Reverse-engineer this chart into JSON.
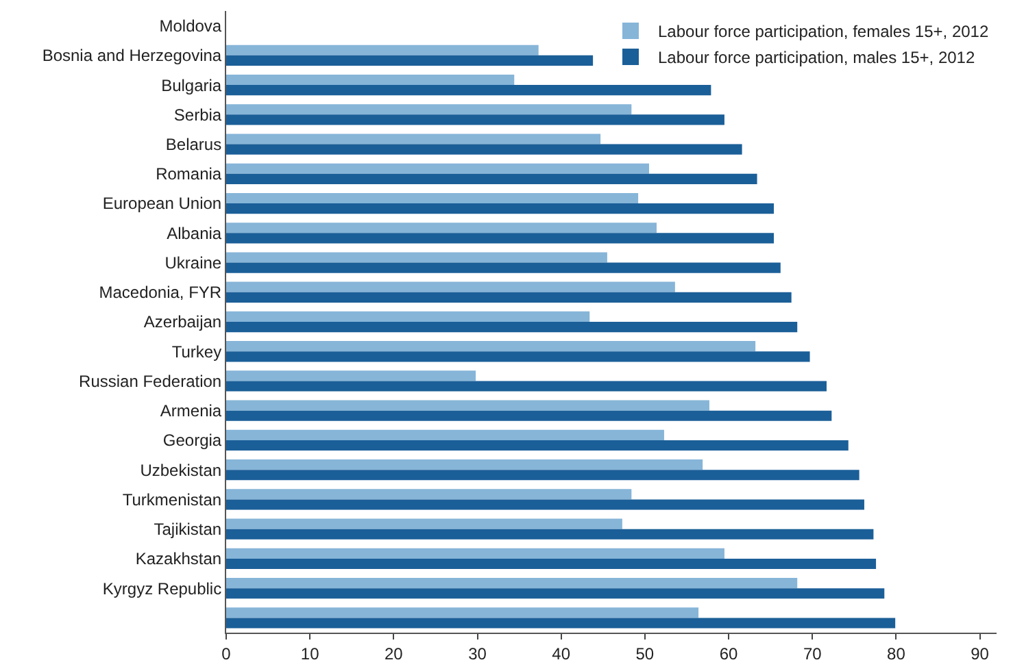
{
  "chart_data": {
    "type": "bar",
    "orientation": "horizontal",
    "categories": [
      "Moldova",
      "Bosnia and Herzegovina",
      "Bulgaria",
      "Serbia",
      "Belarus",
      "Romania",
      "European Union",
      "Albania",
      "Ukraine",
      "Macedonia, FYR",
      "Azerbaijan",
      "Turkey",
      "Russian Federation",
      "Armenia",
      "Georgia",
      "Uzbekistan",
      "Turkmenistan",
      "Tajikistan",
      "Kazakhstan",
      "Kyrgyz Republic",
      null
    ],
    "series": [
      {
        "name": "Labour force participation, females 15+, 2012",
        "color": "#86b5d8",
        "values": [
          null,
          37.3,
          34.4,
          48.4,
          44.7,
          50.5,
          49.2,
          51.4,
          45.5,
          53.6,
          43.4,
          63.2,
          29.8,
          57.7,
          52.3,
          56.9,
          48.4,
          47.3,
          59.5,
          68.2,
          56.4
        ]
      },
      {
        "name": "Labour force participation, males 15+, 2012",
        "color": "#1b5f98",
        "values": [
          null,
          43.8,
          57.9,
          59.5,
          61.6,
          63.4,
          65.4,
          65.4,
          66.2,
          67.5,
          68.2,
          69.7,
          71.7,
          72.3,
          74.3,
          75.6,
          76.2,
          77.3,
          77.6,
          78.6,
          79.9
        ]
      }
    ],
    "xlim": [
      0,
      92
    ],
    "xticks": [
      0,
      10,
      20,
      30,
      40,
      50,
      60,
      70,
      80,
      90
    ],
    "legend": "top right"
  }
}
